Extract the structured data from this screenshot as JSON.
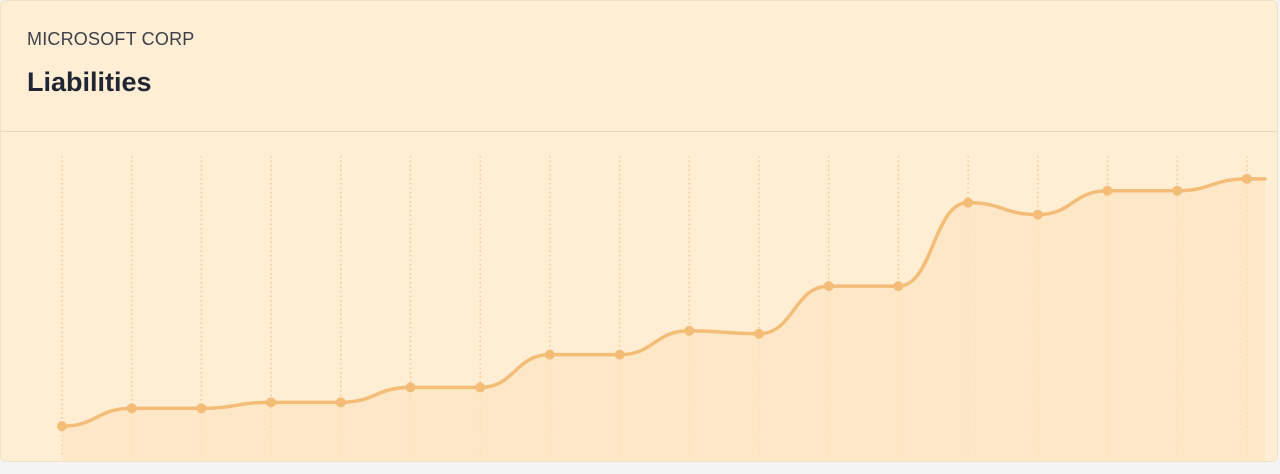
{
  "header": {
    "company": "MICROSOFT CORP",
    "title": "Liabilities"
  },
  "colors": {
    "background": "#ffeed3",
    "line": "#f3bd78",
    "fill": "#fde4c2",
    "grid": "#f6c88c"
  },
  "chart_data": {
    "type": "area",
    "title": "Liabilities",
    "xlabel": "",
    "ylabel": "",
    "grid": "vertical-dotted",
    "ylim": [
      0,
      100
    ],
    "x": [
      1,
      2,
      3,
      4,
      5,
      6,
      7,
      8,
      9,
      10,
      11,
      12,
      13,
      14,
      15,
      16,
      17,
      18
    ],
    "series": [
      {
        "values": [
          8,
          14,
          14,
          16,
          16,
          21,
          21,
          32,
          32,
          40,
          39,
          55,
          55,
          83,
          79,
          87,
          87,
          91
        ]
      }
    ]
  }
}
